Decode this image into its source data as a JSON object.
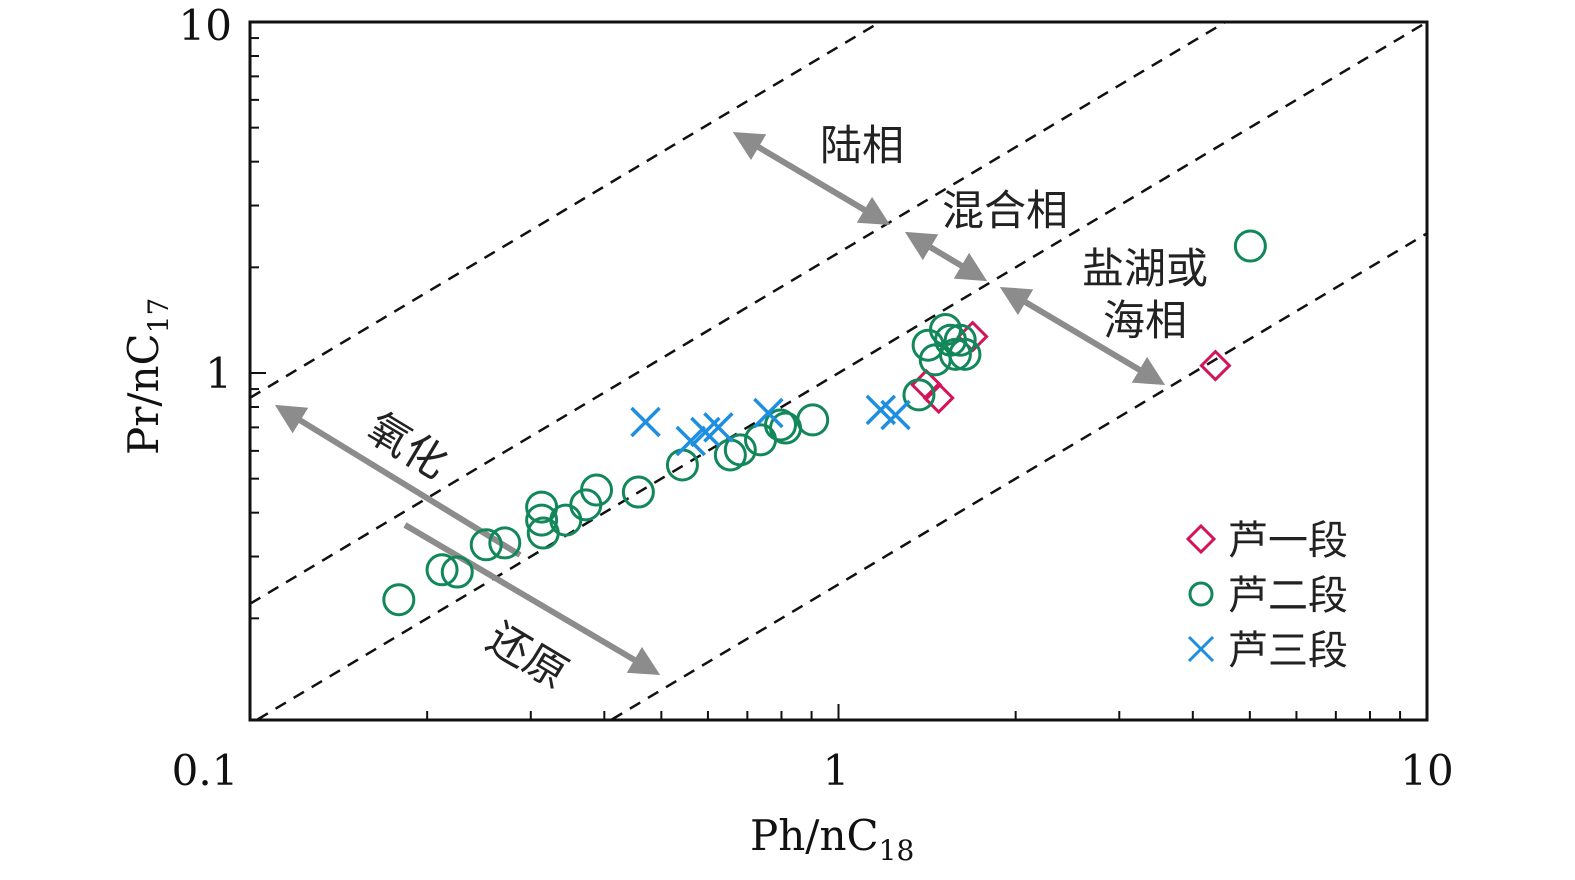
{
  "chart_data": {
    "type": "scatter",
    "xscale": "log",
    "yscale": "log",
    "xlim": [
      0.1,
      10
    ],
    "ylim": [
      0.1,
      10
    ],
    "xlabel": {
      "main": "Ph/nC",
      "sub": "18"
    },
    "ylabel": {
      "main": "Pr/nC",
      "sub": "17"
    },
    "xticks": [
      "0.1",
      "1",
      "10"
    ],
    "yticks": [
      "1",
      "10"
    ],
    "reference_lines_ratio": [
      8.5,
      2.2,
      1,
      0.25
    ],
    "annotations": {
      "terrestrial": "陆相",
      "mixed": "混合相",
      "saline1": "盐湖或",
      "saline2": "海相",
      "oxidizing": "氧化",
      "reducing": "还原"
    },
    "legend_position": "bottom-right",
    "colors": {
      "diamond": "#d4145a",
      "circle": "#12875a",
      "cross": "#1e8fe0",
      "arrow": "#8c8c8c"
    },
    "series": [
      {
        "name": "芦一段",
        "marker": "diamond",
        "x": [
          1.41,
          1.48,
          1.69,
          4.37
        ],
        "y": [
          0.925,
          0.849,
          1.27,
          1.05
        ]
      },
      {
        "name": "芦二段",
        "marker": "circle",
        "x": [
          0.179,
          0.212,
          0.225,
          0.252,
          0.271,
          0.313,
          0.313,
          0.315,
          0.344,
          0.372,
          0.388,
          0.457,
          0.543,
          0.655,
          0.681,
          0.737,
          0.797,
          0.813,
          0.904,
          1.37,
          1.42,
          1.46,
          1.52,
          1.55,
          1.58,
          1.61,
          1.64,
          5.01
        ],
        "y": [
          0.226,
          0.275,
          0.271,
          0.324,
          0.328,
          0.415,
          0.381,
          0.35,
          0.381,
          0.421,
          0.464,
          0.458,
          0.547,
          0.584,
          0.604,
          0.645,
          0.711,
          0.697,
          0.735,
          0.866,
          1.2,
          1.09,
          1.33,
          1.24,
          1.13,
          1.24,
          1.13,
          2.3
        ]
      },
      {
        "name": "芦三段",
        "marker": "cross",
        "x": [
          0.47,
          0.561,
          0.594,
          0.625,
          0.76,
          1.18,
          1.25
        ],
        "y": [
          0.725,
          0.64,
          0.679,
          0.7,
          0.769,
          0.785,
          0.759
        ]
      }
    ]
  }
}
